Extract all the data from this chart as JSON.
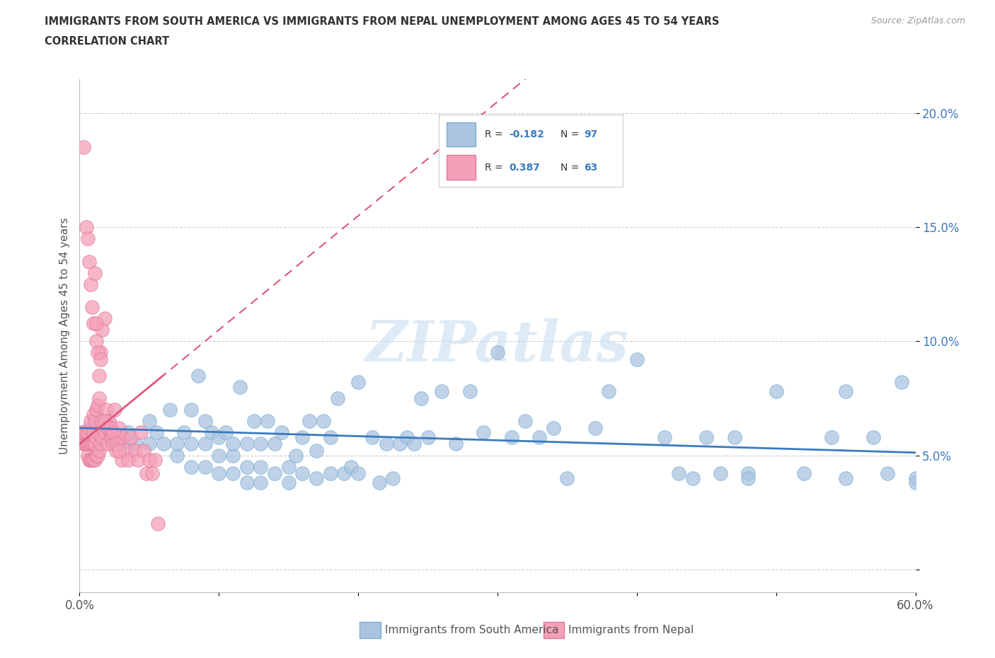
{
  "title_line1": "IMMIGRANTS FROM SOUTH AMERICA VS IMMIGRANTS FROM NEPAL UNEMPLOYMENT AMONG AGES 45 TO 54 YEARS",
  "title_line2": "CORRELATION CHART",
  "source": "Source: ZipAtlas.com",
  "ylabel": "Unemployment Among Ages 45 to 54 years",
  "xlim": [
    0.0,
    0.6
  ],
  "ylim": [
    -0.01,
    0.215
  ],
  "blue_color": "#aac4e0",
  "pink_color": "#f4a0b8",
  "blue_edge_color": "#7aafd4",
  "pink_edge_color": "#e07898",
  "blue_trend_color": "#3a7bbf",
  "pink_trend_color": "#e05878",
  "watermark_color": "#c8dff0",
  "legend_text_color": "#3a7bbf",
  "title_color": "#333333",
  "axis_label_color": "#555555",
  "ytick_color": "#3a7bbf",
  "xtick_color": "#555555",
  "grid_color": "#cccccc",
  "blue_scatter_x": [
    0.02,
    0.03,
    0.035,
    0.04,
    0.05,
    0.05,
    0.055,
    0.06,
    0.065,
    0.07,
    0.07,
    0.075,
    0.08,
    0.08,
    0.08,
    0.085,
    0.09,
    0.09,
    0.09,
    0.095,
    0.1,
    0.1,
    0.1,
    0.105,
    0.11,
    0.11,
    0.11,
    0.115,
    0.12,
    0.12,
    0.12,
    0.125,
    0.13,
    0.13,
    0.13,
    0.135,
    0.14,
    0.14,
    0.145,
    0.15,
    0.15,
    0.155,
    0.16,
    0.16,
    0.165,
    0.17,
    0.17,
    0.175,
    0.18,
    0.18,
    0.185,
    0.19,
    0.195,
    0.2,
    0.2,
    0.21,
    0.215,
    0.22,
    0.225,
    0.23,
    0.235,
    0.24,
    0.245,
    0.25,
    0.26,
    0.27,
    0.28,
    0.29,
    0.3,
    0.31,
    0.32,
    0.33,
    0.34,
    0.35,
    0.37,
    0.38,
    0.4,
    0.42,
    0.44,
    0.46,
    0.47,
    0.48,
    0.5,
    0.52,
    0.54,
    0.55,
    0.57,
    0.59,
    0.6,
    0.6,
    0.61,
    0.62,
    0.55,
    0.58,
    0.48,
    0.43,
    0.45
  ],
  "blue_scatter_y": [
    0.065,
    0.055,
    0.06,
    0.055,
    0.065,
    0.055,
    0.06,
    0.055,
    0.07,
    0.05,
    0.055,
    0.06,
    0.045,
    0.055,
    0.07,
    0.085,
    0.045,
    0.055,
    0.065,
    0.06,
    0.042,
    0.05,
    0.058,
    0.06,
    0.042,
    0.05,
    0.055,
    0.08,
    0.038,
    0.045,
    0.055,
    0.065,
    0.038,
    0.045,
    0.055,
    0.065,
    0.042,
    0.055,
    0.06,
    0.038,
    0.045,
    0.05,
    0.042,
    0.058,
    0.065,
    0.04,
    0.052,
    0.065,
    0.042,
    0.058,
    0.075,
    0.042,
    0.045,
    0.042,
    0.082,
    0.058,
    0.038,
    0.055,
    0.04,
    0.055,
    0.058,
    0.055,
    0.075,
    0.058,
    0.078,
    0.055,
    0.078,
    0.06,
    0.095,
    0.058,
    0.065,
    0.058,
    0.062,
    0.04,
    0.062,
    0.078,
    0.092,
    0.058,
    0.04,
    0.042,
    0.058,
    0.042,
    0.078,
    0.042,
    0.058,
    0.078,
    0.058,
    0.082,
    0.04,
    0.038,
    0.058,
    0.038,
    0.04,
    0.042,
    0.04,
    0.042,
    0.058
  ],
  "pink_scatter_x": [
    0.002,
    0.003,
    0.004,
    0.005,
    0.005,
    0.006,
    0.006,
    0.006,
    0.007,
    0.007,
    0.007,
    0.008,
    0.008,
    0.008,
    0.009,
    0.009,
    0.01,
    0.01,
    0.01,
    0.01,
    0.011,
    0.011,
    0.011,
    0.012,
    0.012,
    0.012,
    0.013,
    0.013,
    0.013,
    0.014,
    0.014,
    0.015,
    0.015,
    0.016,
    0.016,
    0.017,
    0.018,
    0.018,
    0.019,
    0.02,
    0.021,
    0.022,
    0.023,
    0.024,
    0.025,
    0.026,
    0.027,
    0.028,
    0.029,
    0.03,
    0.031,
    0.033,
    0.035,
    0.037,
    0.04,
    0.042,
    0.044,
    0.046,
    0.048,
    0.05,
    0.052,
    0.054,
    0.056
  ],
  "pink_scatter_y": [
    0.06,
    0.055,
    0.055,
    0.055,
    0.06,
    0.05,
    0.055,
    0.06,
    0.048,
    0.055,
    0.062,
    0.048,
    0.055,
    0.065,
    0.048,
    0.055,
    0.048,
    0.055,
    0.06,
    0.068,
    0.048,
    0.055,
    0.065,
    0.05,
    0.058,
    0.07,
    0.05,
    0.06,
    0.072,
    0.052,
    0.085,
    0.055,
    0.095,
    0.058,
    0.105,
    0.062,
    0.06,
    0.11,
    0.07,
    0.055,
    0.065,
    0.06,
    0.058,
    0.055,
    0.07,
    0.052,
    0.058,
    0.062,
    0.058,
    0.048,
    0.058,
    0.052,
    0.048,
    0.058,
    0.052,
    0.048,
    0.06,
    0.052,
    0.042,
    0.048,
    0.042,
    0.048,
    0.02
  ],
  "pink_outliers_x": [
    0.003,
    0.005,
    0.006,
    0.007,
    0.008,
    0.009,
    0.01,
    0.011,
    0.012,
    0.012,
    0.013,
    0.014,
    0.015,
    0.016,
    0.018,
    0.02,
    0.022,
    0.024,
    0.026,
    0.028
  ],
  "pink_outliers_y": [
    0.185,
    0.15,
    0.145,
    0.135,
    0.125,
    0.115,
    0.108,
    0.13,
    0.1,
    0.108,
    0.095,
    0.075,
    0.092,
    0.065,
    0.065,
    0.062,
    0.062,
    0.06,
    0.055,
    0.052
  ]
}
